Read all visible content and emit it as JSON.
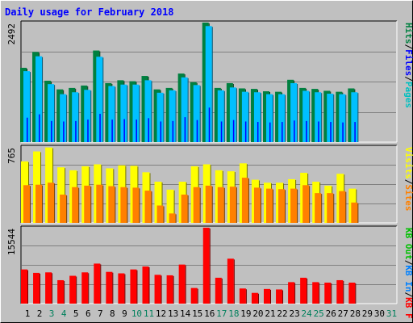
{
  "title": "Daily usage for February 2018",
  "chart_data": [
    {
      "type": "bar",
      "panel": "hits-files-pages",
      "categories": [
        "1",
        "2",
        "3",
        "4",
        "5",
        "6",
        "7",
        "8",
        "9",
        "10",
        "11",
        "12",
        "13",
        "14",
        "15",
        "16",
        "17",
        "18",
        "19",
        "20",
        "21",
        "22",
        "23",
        "24",
        "25",
        "26",
        "27",
        "28",
        "29",
        "30",
        "31"
      ],
      "ymax_label": "2492",
      "ylim": [
        0,
        2492
      ],
      "series": [
        {
          "name": "Hits",
          "color": "#008040",
          "values": [
            1550,
            1880,
            1280,
            1100,
            1130,
            1180,
            1910,
            1230,
            1290,
            1270,
            1380,
            1100,
            1130,
            1430,
            1250,
            2492,
            1130,
            1230,
            1120,
            1110,
            1060,
            1050,
            1300,
            1130,
            1110,
            1070,
            1050,
            1120,
            0,
            0,
            0
          ]
        },
        {
          "name": "Files",
          "color": "#00c0ff",
          "values": [
            1480,
            1790,
            1210,
            1000,
            1040,
            1090,
            1780,
            1170,
            1200,
            1200,
            1290,
            1030,
            1080,
            1350,
            1190,
            2420,
            1080,
            1140,
            1050,
            1040,
            1000,
            1000,
            1230,
            1070,
            1040,
            1010,
            1000,
            1040,
            0,
            0,
            0
          ]
        },
        {
          "name": "Pages",
          "color": "#00c0ff",
          "values": [
            510,
            580,
            440,
            430,
            440,
            470,
            590,
            470,
            480,
            470,
            500,
            430,
            440,
            520,
            460,
            720,
            430,
            460,
            430,
            420,
            410,
            420,
            450,
            440,
            430,
            420,
            410,
            420,
            0,
            0,
            0
          ]
        }
      ]
    },
    {
      "type": "bar",
      "panel": "visits-sites",
      "categories": [
        "1",
        "2",
        "3",
        "4",
        "5",
        "6",
        "7",
        "8",
        "9",
        "10",
        "11",
        "12",
        "13",
        "14",
        "15",
        "16",
        "17",
        "18",
        "19",
        "20",
        "21",
        "22",
        "23",
        "24",
        "25",
        "26",
        "27",
        "28",
        "29",
        "30",
        "31"
      ],
      "ymax_label": "765",
      "ylim": [
        0,
        765
      ],
      "series": [
        {
          "name": "Visits",
          "color": "#ffff00",
          "values": [
            620,
            720,
            760,
            560,
            530,
            570,
            590,
            550,
            580,
            575,
            510,
            415,
            335,
            415,
            570,
            590,
            530,
            520,
            600,
            435,
            405,
            405,
            440,
            505,
            415,
            375,
            495,
            345,
            0,
            0,
            0
          ]
        },
        {
          "name": "Sites",
          "color": "#ff8000",
          "values": [
            380,
            385,
            405,
            285,
            360,
            375,
            385,
            370,
            360,
            355,
            325,
            175,
            95,
            285,
            360,
            375,
            360,
            365,
            455,
            355,
            345,
            340,
            345,
            380,
            300,
            300,
            320,
            205,
            0,
            0,
            0
          ]
        }
      ]
    },
    {
      "type": "bar",
      "panel": "kbytes",
      "categories": [
        "1",
        "2",
        "3",
        "4",
        "5",
        "6",
        "7",
        "8",
        "9",
        "10",
        "11",
        "12",
        "13",
        "14",
        "15",
        "16",
        "17",
        "18",
        "19",
        "20",
        "21",
        "22",
        "23",
        "24",
        "25",
        "26",
        "27",
        "28",
        "29",
        "30",
        "31"
      ],
      "ymax_label": "15544",
      "ylim": [
        0,
        15544
      ],
      "series": [
        {
          "name": "KB F",
          "color": "#ff0000",
          "values": [
            7000,
            6300,
            6400,
            4800,
            5700,
            6400,
            8200,
            6500,
            6200,
            7000,
            7600,
            5900,
            5800,
            8000,
            3200,
            15544,
            5300,
            9200,
            3100,
            2200,
            3000,
            2900,
            4400,
            5300,
            4400,
            4300,
            4800,
            4300,
            0,
            0,
            0
          ]
        }
      ]
    }
  ],
  "legends": {
    "hits_panel": [
      {
        "text": "Pages",
        "color": "#00c0c0"
      },
      {
        "text": "/",
        "color": "#000000"
      },
      {
        "text": "Files",
        "color": "#0000ff"
      },
      {
        "text": "/",
        "color": "#000000"
      },
      {
        "text": "Hits",
        "color": "#008040"
      }
    ],
    "visits_panel": [
      {
        "text": "Sites",
        "color": "#ff8000"
      },
      {
        "text": "/",
        "color": "#000000"
      },
      {
        "text": "Visits",
        "color": "#ffff00"
      }
    ],
    "kb_panel": [
      {
        "text": "KB F",
        "color": "#ff0000"
      },
      {
        "text": "/",
        "color": "#000000"
      },
      {
        "text": "KB In",
        "color": "#0080ff"
      },
      {
        "text": "/",
        "color": "#000000"
      },
      {
        "text": "KB Out",
        "color": "#00c000"
      }
    ]
  },
  "weekend_days": [
    "3",
    "4",
    "10",
    "11",
    "17",
    "18",
    "24",
    "25",
    "31"
  ],
  "colors": {
    "background": "#c0c0c0",
    "weekday_label": "#000000",
    "weekend_label": "#00805c",
    "title": "#0000ff"
  }
}
